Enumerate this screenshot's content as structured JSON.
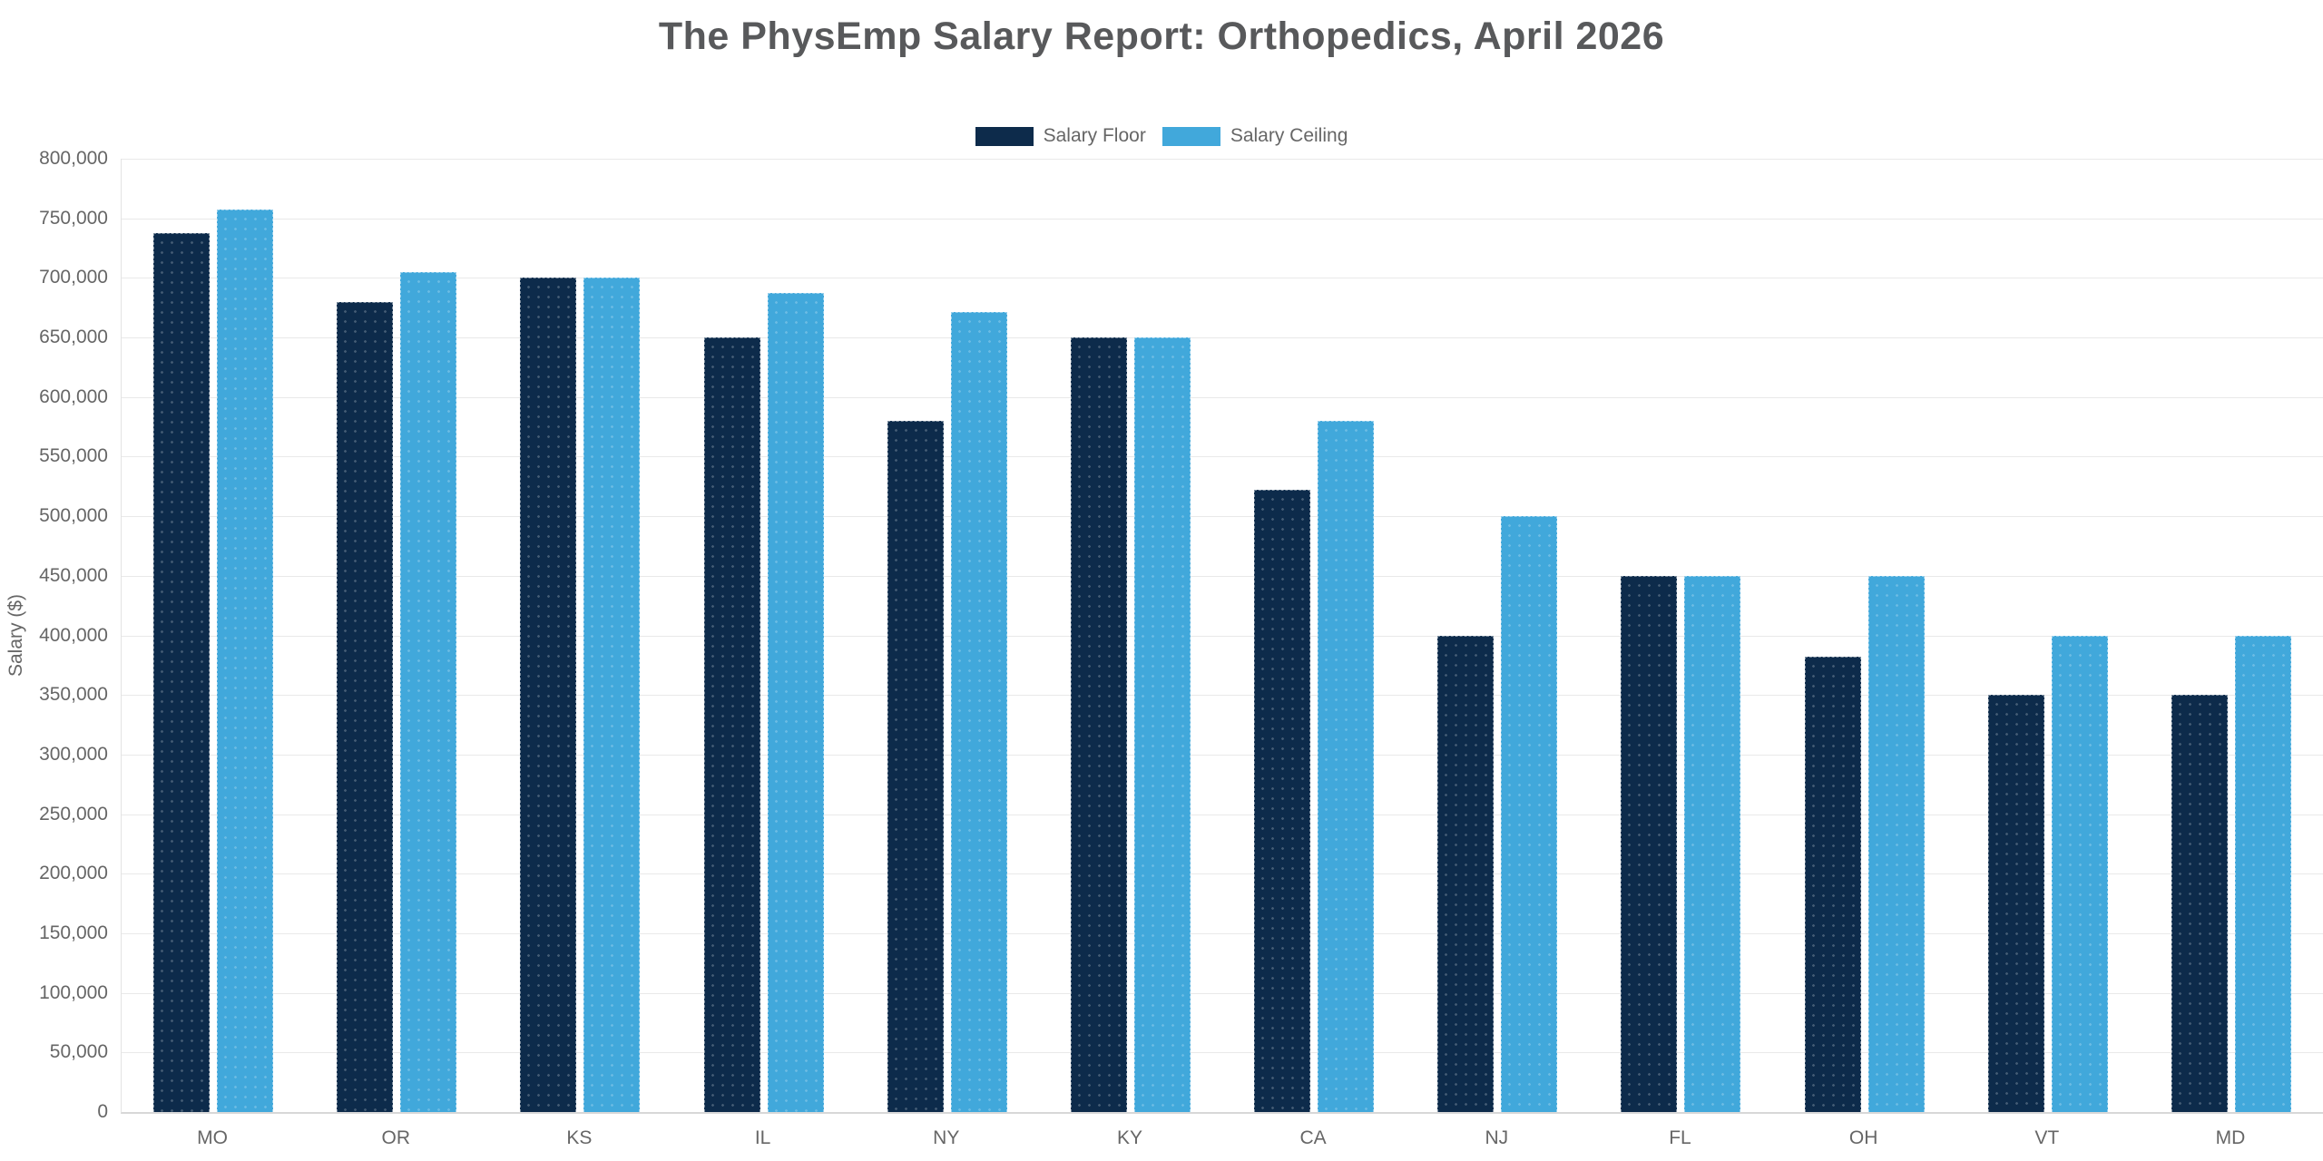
{
  "title": "The PhysEmp Salary Report: Orthopedics, April 2026",
  "y_axis_title": "Salary ($)",
  "chart_data": {
    "type": "bar",
    "title": "The PhysEmp Salary Report: Orthopedics, April 2026",
    "xlabel": "",
    "ylabel": "Salary ($)",
    "ylim": [
      0,
      800000
    ],
    "ytick_step": 50000,
    "grid": true,
    "legend_position": "top",
    "categories": [
      "MO",
      "OR",
      "KS",
      "IL",
      "NY",
      "KY",
      "CA",
      "NJ",
      "FL",
      "OH",
      "VT",
      "MD"
    ],
    "series": [
      {
        "name": "Salary Floor",
        "color": "#0d2b4b",
        "values": [
          737500,
          680000,
          700000,
          650000,
          580000,
          650000,
          522000,
          400000,
          450000,
          382500,
          350000,
          350000
        ]
      },
      {
        "name": "Salary Ceiling",
        "color": "#41a8db",
        "values": [
          757500,
          705000,
          700000,
          687500,
          671000,
          650000,
          580000,
          500000,
          450000,
          450000,
          400000,
          400000
        ]
      }
    ]
  },
  "colors": {
    "title_text": "#58595b",
    "axis_text": "#666666",
    "gridline": "#e9e9e9",
    "salary_floor": "#0d2b4b",
    "salary_ceiling": "#41a8db"
  }
}
